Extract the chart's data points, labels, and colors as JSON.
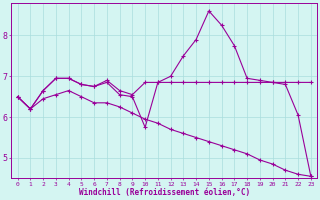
{
  "xlabel": "Windchill (Refroidissement éolien,°C)",
  "bg_color": "#d4f5f2",
  "grid_color": "#aadddd",
  "line_color": "#990099",
  "xlim_min": -0.5,
  "xlim_max": 23.5,
  "ylim_min": 4.5,
  "ylim_max": 8.8,
  "xticks": [
    0,
    1,
    2,
    3,
    4,
    5,
    6,
    7,
    8,
    9,
    10,
    11,
    12,
    13,
    14,
    15,
    16,
    17,
    18,
    19,
    20,
    21,
    22,
    23
  ],
  "yticks": [
    5,
    6,
    7,
    8
  ],
  "line_peak": [
    6.5,
    6.2,
    6.65,
    6.95,
    6.95,
    6.8,
    6.75,
    6.9,
    6.65,
    6.55,
    6.85,
    6.85,
    6.85,
    6.85,
    6.85,
    6.85,
    6.85,
    6.85,
    6.85,
    6.85,
    6.85,
    6.85,
    6.85,
    6.85
  ],
  "line_spiky": [
    6.5,
    6.2,
    6.65,
    6.95,
    6.95,
    6.8,
    6.75,
    6.85,
    6.55,
    6.5,
    5.75,
    6.85,
    7.0,
    7.5,
    7.9,
    8.6,
    8.25,
    7.75,
    6.95,
    6.9,
    6.85,
    6.8,
    6.05,
    4.55
  ],
  "line_descend": [
    6.5,
    6.2,
    6.45,
    6.55,
    6.65,
    6.5,
    6.35,
    6.35,
    6.25,
    6.1,
    5.95,
    5.85,
    5.7,
    5.6,
    5.5,
    5.4,
    5.3,
    5.2,
    5.1,
    4.95,
    4.85,
    4.7,
    4.6,
    4.55
  ]
}
